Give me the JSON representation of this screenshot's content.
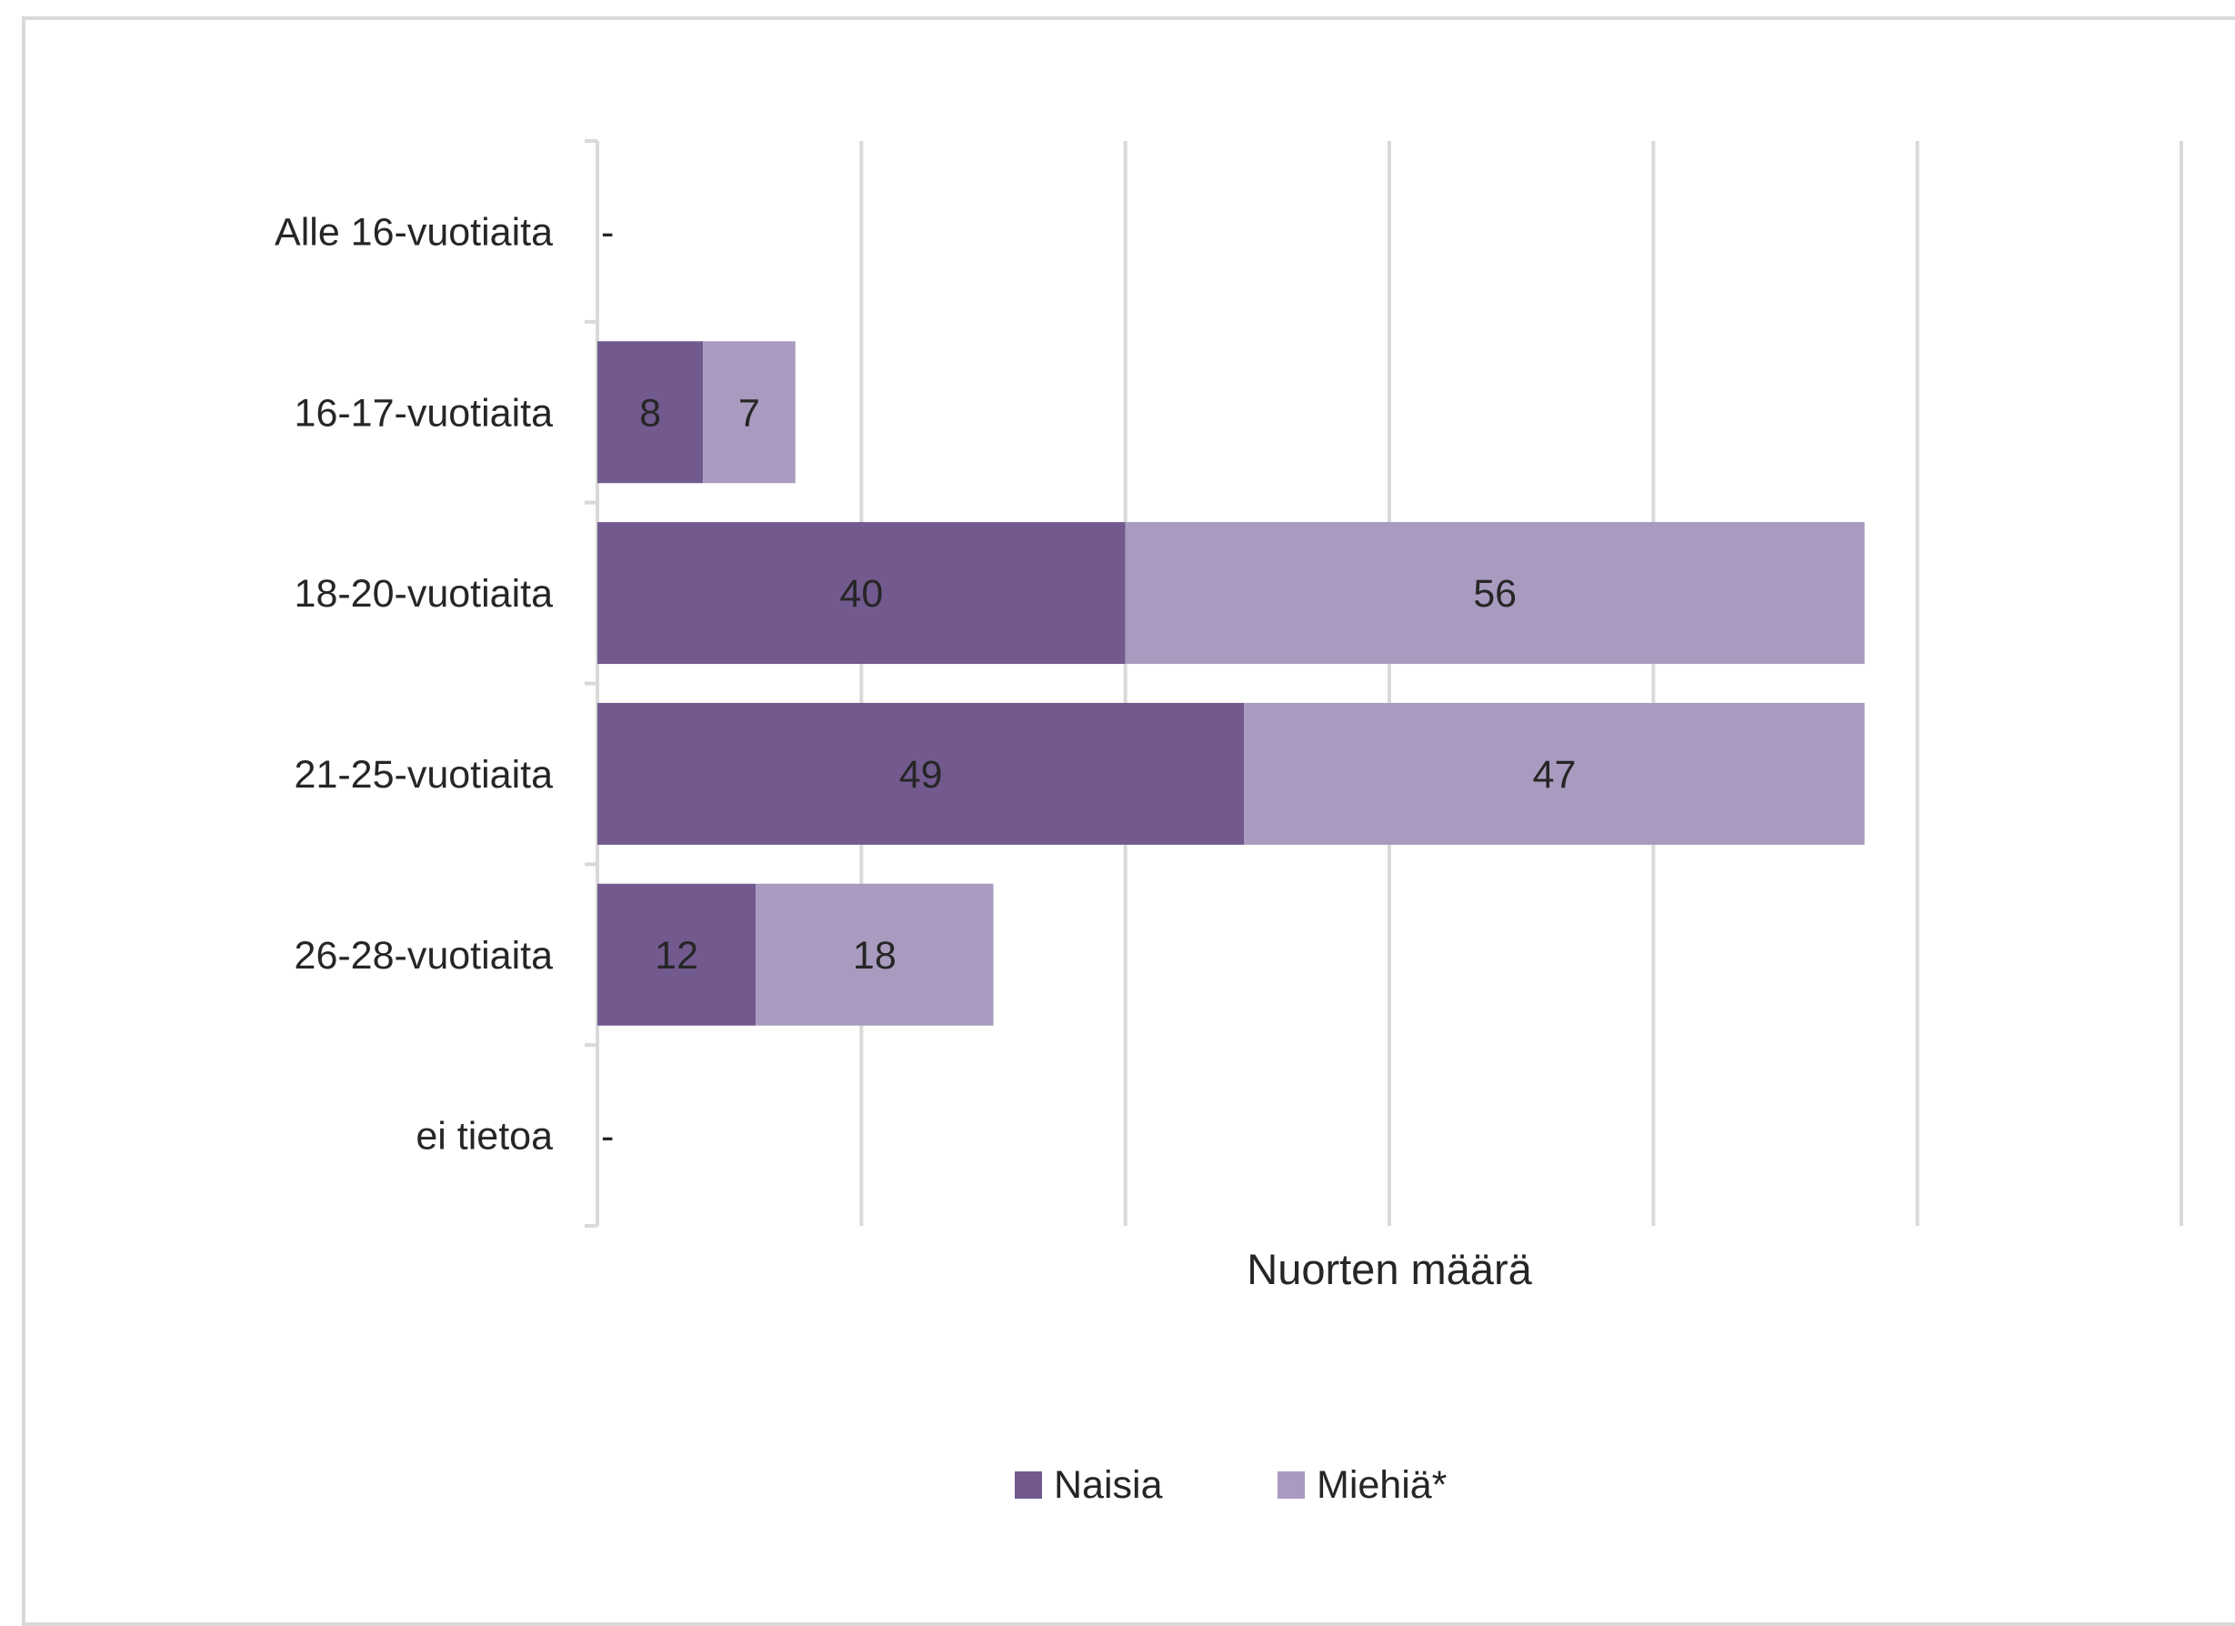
{
  "chart_data": {
    "type": "bar",
    "orientation": "horizontal",
    "stacked": true,
    "categories": [
      "Alle 16-vuotiaita",
      "16-17-vuotiaita",
      "18-20-vuotiaita",
      "21-25-vuotiaita",
      "26-28-vuotiaita",
      "ei tietoa"
    ],
    "series": [
      {
        "name": "Naisia",
        "color": "#725a8f",
        "values": [
          0,
          8,
          40,
          49,
          12,
          0
        ]
      },
      {
        "name": "Miehiä*",
        "color": "#a99bbf",
        "values": [
          0,
          7,
          56,
          47,
          18,
          0
        ]
      }
    ],
    "zero_label": "-",
    "xlabel": "Nuorten määrä",
    "xlim": [
      0,
      120
    ],
    "x_gridline_step": 20,
    "x_tick_labels_shown": false,
    "grid": true,
    "legend_position": "bottom"
  }
}
